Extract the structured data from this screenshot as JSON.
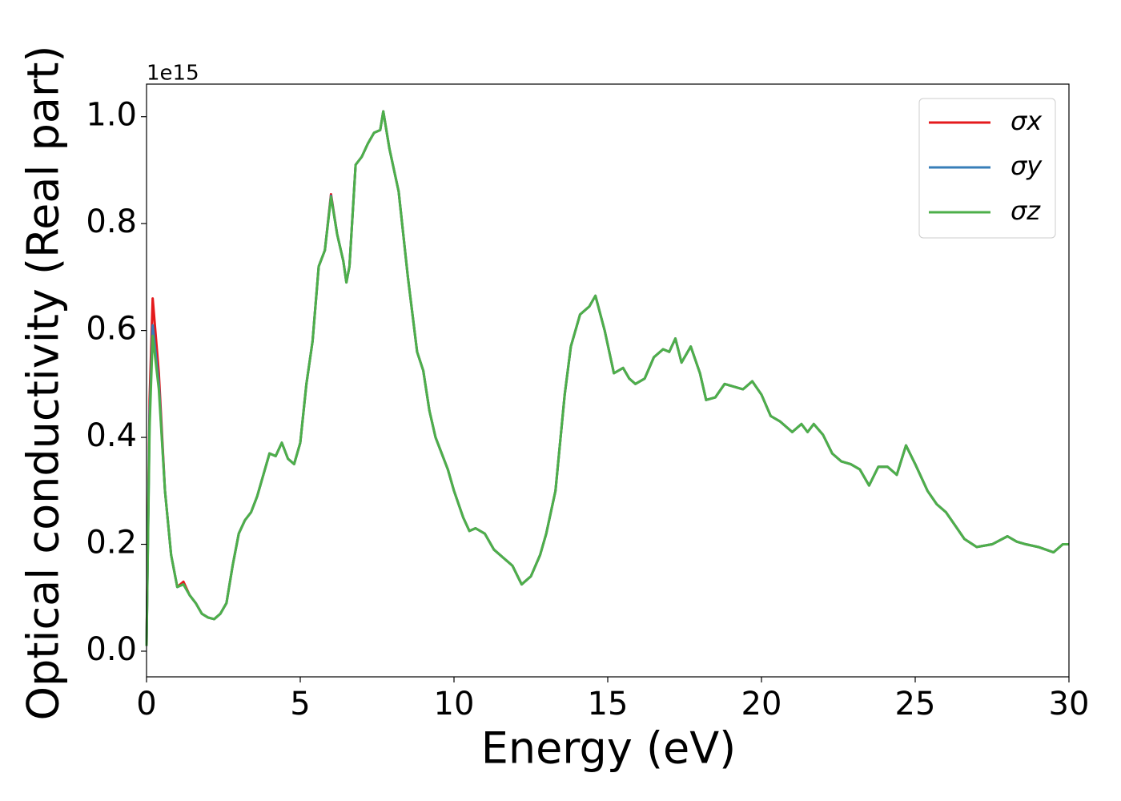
{
  "chart_data": {
    "type": "line",
    "x_label": "Energy (eV)",
    "y_label": "Optical conductivity (Real part)",
    "y_offset_label": "1e15",
    "xlim": [
      0,
      30
    ],
    "xticks": [
      0,
      5,
      10,
      15,
      20,
      25,
      30
    ],
    "ylim": [
      -0.048,
      1.061
    ],
    "yticks": [
      {
        "value": 0,
        "label": "0.0"
      },
      0.2,
      0.4,
      0.6,
      0.8,
      {
        "value": 1,
        "label": "1.0"
      }
    ],
    "grid": false,
    "legend": "upper right",
    "x": [
      0,
      0.1,
      0.2,
      0.4,
      0.6,
      0.8,
      1.0,
      1.2,
      1.4,
      1.6,
      1.8,
      2.0,
      2.2,
      2.4,
      2.6,
      2.8,
      3.0,
      3.2,
      3.4,
      3.6,
      3.8,
      4.0,
      4.2,
      4.4,
      4.6,
      4.8,
      5.0,
      5.2,
      5.4,
      5.6,
      5.8,
      6.0,
      6.2,
      6.4,
      6.5,
      6.6,
      6.8,
      7.0,
      7.2,
      7.4,
      7.6,
      7.7,
      7.9,
      8.2,
      8.5,
      8.8,
      9.0,
      9.2,
      9.4,
      9.6,
      9.8,
      10.0,
      10.3,
      10.5,
      10.7,
      11.0,
      11.3,
      11.6,
      11.9,
      12.2,
      12.5,
      12.8,
      13.0,
      13.3,
      13.6,
      13.8,
      14.1,
      14.4,
      14.6,
      14.9,
      15.2,
      15.5,
      15.7,
      15.9,
      16.2,
      16.5,
      16.8,
      17.0,
      17.2,
      17.4,
      17.7,
      18.0,
      18.2,
      18.5,
      18.8,
      19.1,
      19.4,
      19.7,
      20.0,
      20.3,
      20.6,
      21.0,
      21.3,
      21.5,
      21.7,
      22.0,
      22.3,
      22.6,
      22.9,
      23.2,
      23.5,
      23.8,
      24.1,
      24.4,
      24.7,
      25.0,
      25.4,
      25.7,
      26.0,
      26.3,
      26.6,
      27.0,
      27.5,
      28.0,
      28.3,
      28.6,
      29.0,
      29.5,
      29.8,
      30.0
    ],
    "series": [
      {
        "name": "σx",
        "color": "#e41a1c",
        "values": [
          0.01,
          0.47,
          0.66,
          0.52,
          0.3,
          0.18,
          0.12,
          0.13,
          0.105,
          0.09,
          0.07,
          0.063,
          0.06,
          0.07,
          0.09,
          0.16,
          0.22,
          0.245,
          0.26,
          0.29,
          0.33,
          0.37,
          0.365,
          0.39,
          0.36,
          0.35,
          0.39,
          0.5,
          0.58,
          0.72,
          0.75,
          0.855,
          0.78,
          0.73,
          0.69,
          0.72,
          0.91,
          0.925,
          0.95,
          0.97,
          0.975,
          1.01,
          0.94,
          0.86,
          0.7,
          0.56,
          0.525,
          0.45,
          0.4,
          0.37,
          0.34,
          0.3,
          0.25,
          0.225,
          0.23,
          0.22,
          0.19,
          0.175,
          0.16,
          0.125,
          0.14,
          0.18,
          0.22,
          0.3,
          0.48,
          0.57,
          0.63,
          0.645,
          0.665,
          0.6,
          0.52,
          0.53,
          0.51,
          0.5,
          0.51,
          0.55,
          0.565,
          0.56,
          0.585,
          0.54,
          0.57,
          0.52,
          0.47,
          0.475,
          0.5,
          0.495,
          0.49,
          0.505,
          0.48,
          0.44,
          0.43,
          0.41,
          0.425,
          0.41,
          0.425,
          0.405,
          0.37,
          0.355,
          0.35,
          0.34,
          0.31,
          0.345,
          0.345,
          0.33,
          0.385,
          0.35,
          0.3,
          0.275,
          0.26,
          0.235,
          0.21,
          0.195,
          0.2,
          0.215,
          0.205,
          0.2,
          0.195,
          0.185,
          0.2,
          0.2
        ]
      },
      {
        "name": "σy",
        "color": "#377eb8",
        "values": [
          0.01,
          0.44,
          0.61,
          0.5,
          0.3,
          0.18,
          0.12,
          0.125,
          0.105,
          0.09,
          0.07,
          0.063,
          0.06,
          0.07,
          0.09,
          0.16,
          0.22,
          0.245,
          0.26,
          0.29,
          0.33,
          0.37,
          0.365,
          0.39,
          0.36,
          0.35,
          0.39,
          0.5,
          0.58,
          0.72,
          0.75,
          0.852,
          0.78,
          0.73,
          0.69,
          0.72,
          0.91,
          0.925,
          0.95,
          0.97,
          0.975,
          1.01,
          0.94,
          0.86,
          0.7,
          0.56,
          0.525,
          0.45,
          0.4,
          0.37,
          0.34,
          0.3,
          0.25,
          0.225,
          0.23,
          0.22,
          0.19,
          0.175,
          0.16,
          0.125,
          0.14,
          0.18,
          0.22,
          0.3,
          0.48,
          0.57,
          0.63,
          0.645,
          0.665,
          0.6,
          0.52,
          0.53,
          0.51,
          0.5,
          0.51,
          0.55,
          0.565,
          0.56,
          0.585,
          0.54,
          0.57,
          0.52,
          0.47,
          0.475,
          0.5,
          0.495,
          0.49,
          0.505,
          0.48,
          0.44,
          0.43,
          0.41,
          0.425,
          0.41,
          0.425,
          0.405,
          0.37,
          0.355,
          0.35,
          0.34,
          0.31,
          0.345,
          0.345,
          0.33,
          0.385,
          0.35,
          0.3,
          0.275,
          0.26,
          0.235,
          0.21,
          0.195,
          0.2,
          0.215,
          0.205,
          0.2,
          0.195,
          0.185,
          0.2,
          0.2
        ]
      },
      {
        "name": "σz",
        "color": "#4daf4a",
        "values": [
          0.01,
          0.42,
          0.59,
          0.49,
          0.3,
          0.18,
          0.12,
          0.125,
          0.105,
          0.09,
          0.07,
          0.063,
          0.06,
          0.07,
          0.09,
          0.16,
          0.22,
          0.245,
          0.26,
          0.29,
          0.33,
          0.37,
          0.365,
          0.39,
          0.36,
          0.35,
          0.39,
          0.5,
          0.58,
          0.72,
          0.75,
          0.85,
          0.78,
          0.73,
          0.69,
          0.72,
          0.91,
          0.925,
          0.95,
          0.97,
          0.975,
          1.01,
          0.94,
          0.86,
          0.7,
          0.56,
          0.525,
          0.45,
          0.4,
          0.37,
          0.34,
          0.3,
          0.25,
          0.225,
          0.23,
          0.22,
          0.19,
          0.175,
          0.16,
          0.125,
          0.14,
          0.18,
          0.22,
          0.3,
          0.48,
          0.57,
          0.63,
          0.645,
          0.665,
          0.6,
          0.52,
          0.53,
          0.51,
          0.5,
          0.51,
          0.55,
          0.565,
          0.56,
          0.585,
          0.54,
          0.57,
          0.52,
          0.47,
          0.475,
          0.5,
          0.495,
          0.49,
          0.505,
          0.48,
          0.44,
          0.43,
          0.41,
          0.425,
          0.41,
          0.425,
          0.405,
          0.37,
          0.355,
          0.35,
          0.34,
          0.31,
          0.345,
          0.345,
          0.33,
          0.385,
          0.35,
          0.3,
          0.275,
          0.26,
          0.235,
          0.21,
          0.195,
          0.2,
          0.215,
          0.205,
          0.2,
          0.195,
          0.185,
          0.2,
          0.2
        ]
      }
    ]
  }
}
